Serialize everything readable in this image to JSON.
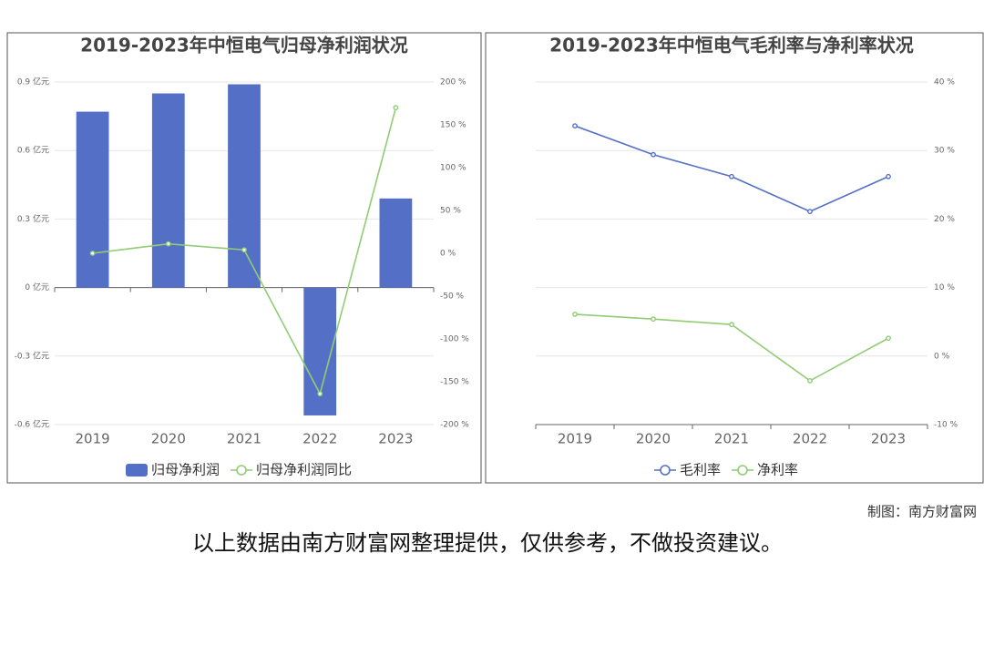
{
  "chart_data": [
    {
      "type": "bar",
      "title": "2019-2023年中恒电气归母净利润状况",
      "categories": [
        "2019",
        "2020",
        "2021",
        "2022",
        "2023"
      ],
      "series": [
        {
          "name": "归母净利润",
          "type": "bar",
          "color": "#5470c6",
          "values": [
            0.77,
            0.85,
            0.89,
            -0.56,
            0.39
          ]
        },
        {
          "name": "归母净利润同比",
          "type": "line",
          "axis": "y2",
          "color": "#91cc75",
          "values": [
            0,
            11,
            4,
            -164,
            170
          ]
        }
      ],
      "ylim": [
        -0.6,
        0.9
      ],
      "yticks": [
        {
          "value": -0.6,
          "label": "-0.6 亿元"
        },
        {
          "value": -0.3,
          "label": "-0.3 亿元"
        },
        {
          "value": 0,
          "label": "0 亿元"
        },
        {
          "value": 0.3,
          "label": "0.3 亿元"
        },
        {
          "value": 0.6,
          "label": "0.6 亿元"
        },
        {
          "value": 0.9,
          "label": "0.9 亿元"
        }
      ],
      "y2lim": [
        -200,
        200
      ],
      "y2ticks": [
        {
          "value": -200,
          "label": "-200 %"
        },
        {
          "value": -150,
          "label": "-150 %"
        },
        {
          "value": -100,
          "label": "-100 %"
        },
        {
          "value": -50,
          "label": "-50 %"
        },
        {
          "value": 0,
          "label": "0 %"
        },
        {
          "value": 50,
          "label": "50 %"
        },
        {
          "value": 100,
          "label": "100 %"
        },
        {
          "value": 150,
          "label": "150 %"
        },
        {
          "value": 200,
          "label": "200 %"
        }
      ],
      "grid": true,
      "legend": "bottom"
    },
    {
      "type": "line",
      "title": "2019-2023年中恒电气毛利率与净利率状况",
      "categories": [
        "2019",
        "2020",
        "2021",
        "2022",
        "2023"
      ],
      "series": [
        {
          "name": "毛利率",
          "type": "line",
          "color": "#5470c6",
          "values": [
            33.6,
            29.4,
            26.2,
            21.1,
            26.2
          ]
        },
        {
          "name": "净利率",
          "type": "line",
          "color": "#91cc75",
          "values": [
            6.1,
            5.4,
            4.6,
            -3.6,
            2.6
          ]
        }
      ],
      "ylim": [
        -10,
        40
      ],
      "y_axis_side": "right",
      "yticks": [
        {
          "value": -10,
          "label": "-10 %"
        },
        {
          "value": 0,
          "label": "0 %"
        },
        {
          "value": 10,
          "label": "10 %"
        },
        {
          "value": 20,
          "label": "20 %"
        },
        {
          "value": 30,
          "label": "30 %"
        },
        {
          "value": 40,
          "label": "40 %"
        }
      ],
      "grid": true,
      "legend": "bottom"
    }
  ],
  "credit": "制图：南方财富网",
  "caption": "以上数据由南方财富网整理提供，仅供参考，不做投资建议。"
}
